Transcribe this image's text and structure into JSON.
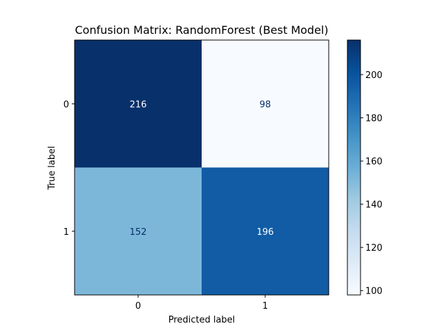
{
  "chart_data": {
    "type": "heatmap",
    "title": "Confusion Matrix: RandomForest (Best Model)",
    "xlabel": "Predicted label",
    "ylabel": "True label",
    "x_categories": [
      "0",
      "1"
    ],
    "y_categories": [
      "0",
      "1"
    ],
    "values": [
      [
        216,
        98
      ],
      [
        152,
        196
      ]
    ],
    "colormap": "Blues",
    "colorbar": {
      "range": [
        98,
        216
      ],
      "ticks": [
        100,
        120,
        140,
        160,
        180,
        200
      ]
    },
    "grid": false
  },
  "colors": {
    "cmap_stops": [
      "#f7fbff",
      "#deebf7",
      "#c6dbef",
      "#9ecae1",
      "#6baed6",
      "#4292c6",
      "#2171b5",
      "#08519c",
      "#08306b"
    ],
    "text_on_light": "#08306b",
    "text_on_dark": "#ffffff",
    "axis": "#000000"
  }
}
